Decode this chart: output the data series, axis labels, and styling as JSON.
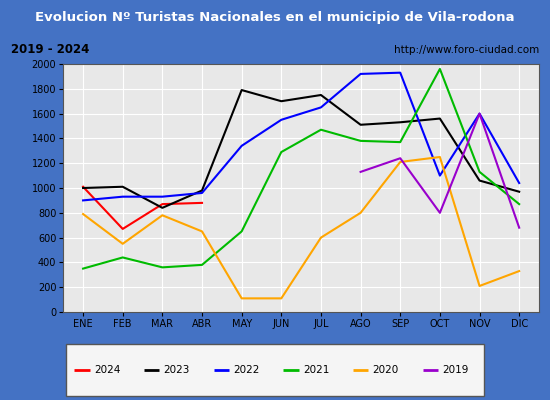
{
  "title": "Evolucion Nº Turistas Nacionales en el municipio de Vila-rodona",
  "subtitle_left": "2019 - 2024",
  "subtitle_right": "http://www.foro-ciudad.com",
  "months": [
    "ENE",
    "FEB",
    "MAR",
    "ABR",
    "MAY",
    "JUN",
    "JUL",
    "AGO",
    "SEP",
    "OCT",
    "NOV",
    "DIC"
  ],
  "series_data": {
    "2024": {
      "x": [
        0,
        1,
        2,
        3
      ],
      "y": [
        1010,
        670,
        870,
        880
      ]
    },
    "2023": {
      "x": [
        0,
        1,
        2,
        3,
        4,
        5,
        6,
        7,
        8,
        9,
        10,
        11
      ],
      "y": [
        1000,
        1010,
        840,
        980,
        1790,
        1700,
        1750,
        1510,
        1530,
        1560,
        1060,
        970
      ]
    },
    "2022": {
      "x": [
        0,
        1,
        2,
        3,
        4,
        5,
        6,
        7,
        8,
        9,
        10,
        11
      ],
      "y": [
        900,
        930,
        930,
        960,
        1340,
        1550,
        1650,
        1920,
        1930,
        1100,
        1600,
        1040
      ]
    },
    "2021": {
      "x": [
        0,
        1,
        2,
        3,
        4,
        5,
        6,
        7,
        8,
        9,
        10,
        11
      ],
      "y": [
        350,
        440,
        360,
        380,
        650,
        1290,
        1470,
        1380,
        1370,
        1960,
        1130,
        870
      ]
    },
    "2020": {
      "x": [
        0,
        1,
        2,
        3,
        4,
        5,
        6,
        7,
        8,
        9,
        10,
        11
      ],
      "y": [
        790,
        550,
        780,
        650,
        110,
        110,
        600,
        800,
        1210,
        1250,
        210,
        330
      ]
    },
    "2019": {
      "x": [
        7,
        8,
        9,
        10,
        11
      ],
      "y": [
        1130,
        1240,
        800,
        1600,
        680
      ]
    }
  },
  "colors": {
    "2024": "#ff0000",
    "2023": "#000000",
    "2022": "#0000ff",
    "2021": "#00bb00",
    "2020": "#ffa500",
    "2019": "#9900cc"
  },
  "legend_order": [
    "2024",
    "2023",
    "2022",
    "2021",
    "2020",
    "2019"
  ],
  "ylim": [
    0,
    2000
  ],
  "yticks": [
    0,
    200,
    400,
    600,
    800,
    1000,
    1200,
    1400,
    1600,
    1800,
    2000
  ],
  "title_bg": "#4472c4",
  "title_color": "#ffffff",
  "subtitle_bg": "#d4d0c8",
  "plot_bg": "#e8e8e8",
  "fig_bg": "#4472c4",
  "grid_color": "#ffffff",
  "linewidth": 1.5
}
